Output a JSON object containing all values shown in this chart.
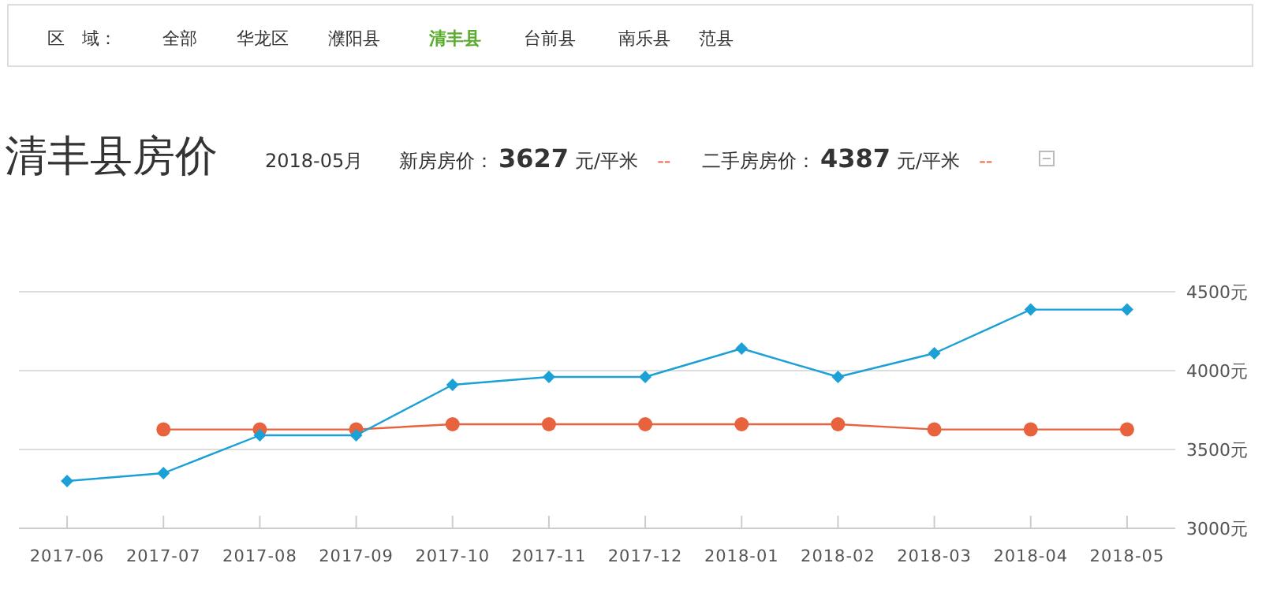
{
  "chart_data": {
    "type": "line",
    "title": "清丰县房价",
    "subtitle": "2018-05月",
    "annotations": [
      "区　域：",
      "全部",
      "华龙区",
      "濮阳县",
      "清丰县",
      "台前县",
      "南乐县",
      "范县",
      "新房房价：",
      "3627",
      "元/平米",
      "--",
      "二手房房价：",
      "4387",
      "元/平米",
      "--"
    ],
    "categories": [
      "2017-06",
      "2017-07",
      "2017-08",
      "2017-09",
      "2017-10",
      "2017-11",
      "2017-12",
      "2018-01",
      "2018-02",
      "2018-03",
      "2018-04",
      "2018-05"
    ],
    "series": [
      {
        "color": "#e8623e",
        "marker": "circle",
        "values": [
          null,
          3627,
          3627,
          3627,
          3660,
          3660,
          3660,
          3660,
          3660,
          3627,
          3627,
          3627
        ]
      },
      {
        "color": "#1ba1d6",
        "marker": "diamond",
        "values": [
          3300,
          3350,
          3590,
          3590,
          3910,
          3960,
          3960,
          4140,
          3960,
          4110,
          4387,
          4387
        ]
      }
    ],
    "ylim": [
      3000,
      4500
    ],
    "yticks": [
      {
        "value": 3000,
        "label": "3000元"
      },
      {
        "value": 3500,
        "label": "3500元"
      },
      {
        "value": 4000,
        "label": "4000元"
      },
      {
        "value": 4500,
        "label": "4500元"
      }
    ],
    "grid": "y"
  }
}
